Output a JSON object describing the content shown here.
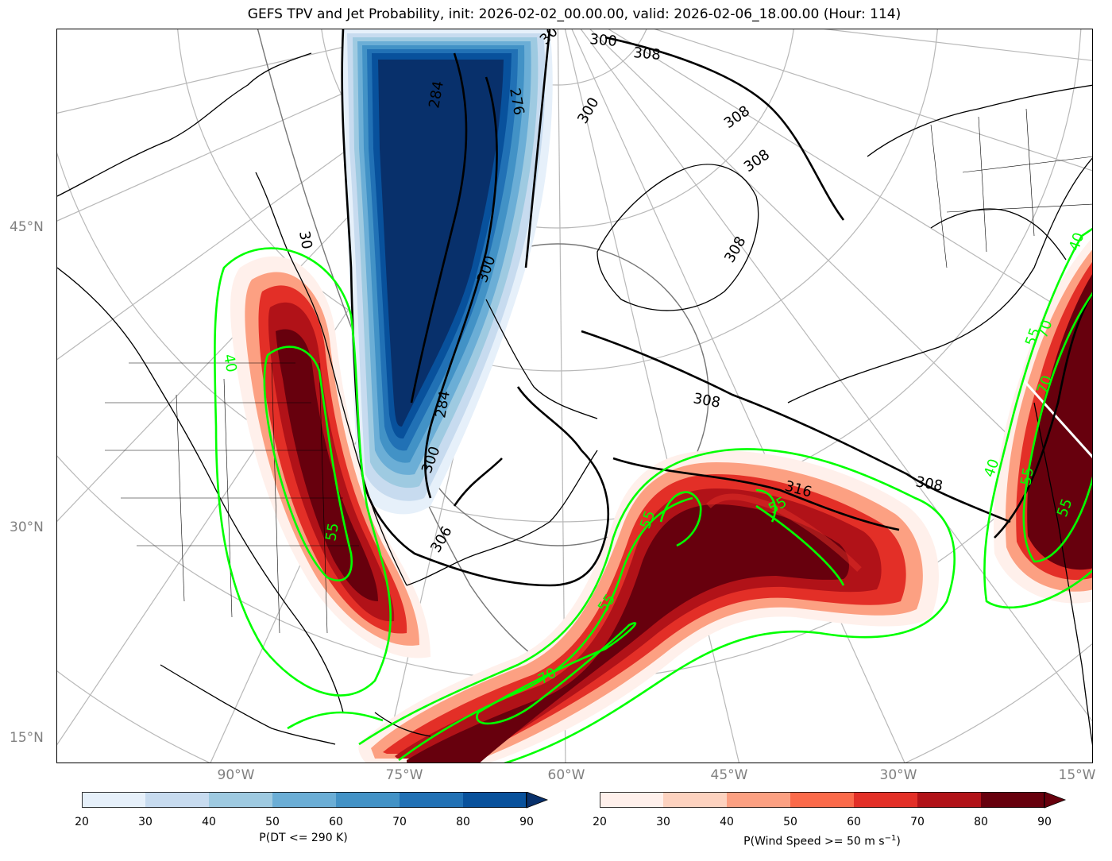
{
  "title": "GEFS TPV and Jet Probability, init: 2026-02-02_00.00.00, valid: 2026-02-06_18.00.00 (Hour: 114)",
  "latitude_labels": [
    "45°N",
    "30°N",
    "15°N"
  ],
  "longitude_labels": [
    "90°W",
    "75°W",
    "60°W",
    "45°W",
    "30°W",
    "15°W"
  ],
  "theta_contour_labels": [
    "284",
    "300",
    "308",
    "316",
    "30",
    "300",
    "308",
    "308",
    "308",
    "300",
    "30",
    "300",
    "306",
    "308",
    "308",
    "284",
    "276"
  ],
  "jet_contour_labels": [
    "40",
    "55",
    "70",
    "55",
    "55",
    "70",
    "55",
    "40",
    "55",
    "70",
    "55",
    "40",
    "55"
  ],
  "colorbars": {
    "tpv": {
      "title": "P(DT <= 290 K)",
      "ticks": [
        "20",
        "30",
        "40",
        "50",
        "60",
        "70",
        "80",
        "90"
      ],
      "colors": [
        "#e6f0fa",
        "#c7dbef",
        "#9ecae1",
        "#6baed6",
        "#4292c6",
        "#2171b5",
        "#08519c",
        "#08306b"
      ]
    },
    "jet": {
      "title": "P(Wind Speed >= 50 m s",
      "title_sup": "−1",
      "title_end": ")",
      "ticks": [
        "20",
        "30",
        "40",
        "50",
        "60",
        "70",
        "80",
        "90"
      ],
      "colors": [
        "#fff0eb",
        "#fdd2bf",
        "#fca082",
        "#fb6a4a",
        "#e32f27",
        "#b11218",
        "#67000d",
        "#67000d"
      ]
    }
  },
  "colors": {
    "jet_contour": "#00ff00",
    "theta_contour": "#000000",
    "graticule": "#b0b0b0",
    "coastline": "#000000"
  }
}
